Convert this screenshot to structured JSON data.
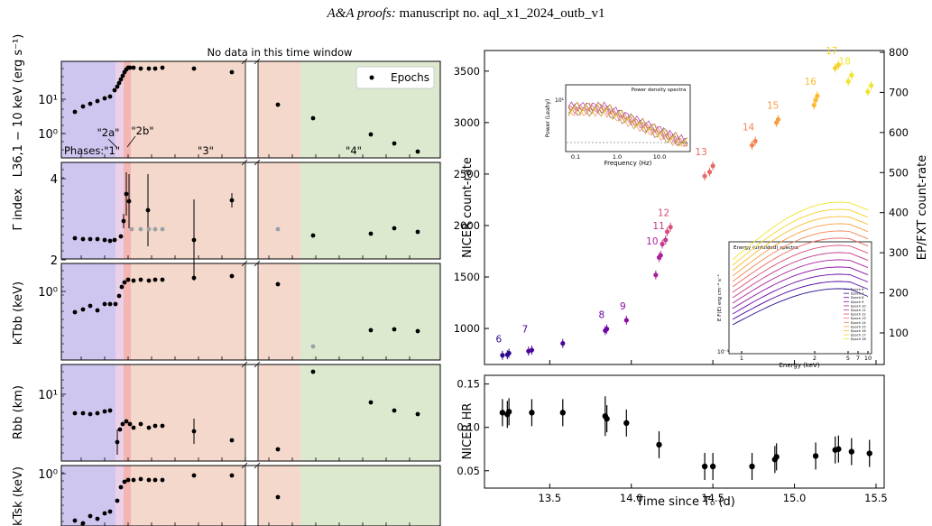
{
  "header": {
    "journal": "A&A proofs:",
    "manuscript": "manuscript no. aql_x1_2024_outb_v1"
  },
  "colors": {
    "phase1": "#cfc6f0",
    "phase2a": "#ead0e8",
    "phase2b": "#f4b6b2",
    "phase3": "#f4d8cb",
    "phase4": "#dde9cf",
    "points": "#000000",
    "upper_limit": "#9aa0a6"
  },
  "left_figure": {
    "gap_note": "No data in this time window",
    "legend": "Epochs",
    "phase_labels": {
      "p1": "\"1\"",
      "p2a": "\"2a\"",
      "p2b": "\"2b\"",
      "p3": "\"3\"",
      "p4": "\"4\"",
      "prefix": "Phases:"
    },
    "panels": [
      {
        "ylabel": "L36,1 − 10 keV (erg s⁻¹)",
        "ticks": [
          "10¹",
          "10⁰"
        ]
      },
      {
        "ylabel": "Γ index",
        "ticks": [
          "4",
          "2"
        ]
      },
      {
        "ylabel": "kTbb (keV)",
        "ticks": [
          "10⁰"
        ]
      },
      {
        "ylabel": "Rbb (km)",
        "ticks": [
          "10¹"
        ]
      },
      {
        "ylabel": "kTsk (keV)",
        "ticks": [
          "10⁰"
        ]
      }
    ]
  },
  "chart_data": [
    {
      "type": "scatter",
      "title": "",
      "xlabel": "",
      "ylabel": "NICER count-rate",
      "ylabel_right": "EP/FXT count-rate",
      "ylim": [
        650,
        3700
      ],
      "yticks": [
        "3500",
        "3000",
        "2500",
        "2000",
        "1500",
        "1000"
      ],
      "yticks_right": [
        "800",
        "700",
        "600",
        "500",
        "400",
        "300",
        "200",
        "100"
      ],
      "xlim": [
        13.1,
        15.55
      ],
      "series": [
        {
          "name": "6",
          "x": [
            13.21,
            13.24,
            13.25
          ],
          "values": [
            740,
            745,
            760
          ],
          "color": "#2b0a8c"
        },
        {
          "name": "7",
          "x": [
            13.37,
            13.39,
            13.58
          ],
          "values": [
            780,
            790,
            855
          ],
          "color": "#4b059c"
        },
        {
          "name": "8",
          "x": [
            13.84,
            13.85
          ],
          "values": [
            980,
            995
          ],
          "color": "#6a06a4"
        },
        {
          "name": "9",
          "x": [
            13.97
          ],
          "values": [
            1080
          ],
          "color": "#8a0ba3"
        },
        {
          "name": "10",
          "x": [
            14.15,
            14.17,
            14.18
          ],
          "values": [
            1520,
            1690,
            1710
          ],
          "color": "#a8239c"
        },
        {
          "name": "11",
          "x": [
            14.19,
            14.21
          ],
          "values": [
            1820,
            1860
          ],
          "color": "#c23a8c"
        },
        {
          "name": "12",
          "x": [
            14.22,
            14.24
          ],
          "values": [
            1940,
            1985
          ],
          "color": "#d6517a"
        },
        {
          "name": "13",
          "x": [
            14.45,
            14.48,
            14.5
          ],
          "values": [
            2480,
            2520,
            2580
          ],
          "color": "#e86a66"
        },
        {
          "name": "14",
          "x": [
            14.74,
            14.76
          ],
          "values": [
            2780,
            2820
          ],
          "color": "#f38452"
        },
        {
          "name": "15",
          "x": [
            14.89,
            14.9
          ],
          "values": [
            3000,
            3030
          ],
          "color": "#fa9e3f"
        },
        {
          "name": "16",
          "x": [
            15.12,
            15.13,
            15.14
          ],
          "values": [
            3170,
            3220,
            3260
          ],
          "color": "#fcba2e"
        },
        {
          "name": "17",
          "x": [
            15.25,
            15.27
          ],
          "values": [
            3530,
            3560
          ],
          "color": "#f6d12a"
        },
        {
          "name": "18",
          "x": [
            15.33,
            15.35,
            15.45,
            15.47
          ],
          "values": [
            3400,
            3460,
            3300,
            3360
          ],
          "color": "#f0e52c"
        }
      ]
    },
    {
      "type": "scatter",
      "title": "",
      "xlabel": "Time since T₀ (d)",
      "ylabel": "NICER HR",
      "ylim": [
        0.03,
        0.16
      ],
      "xlim": [
        13.1,
        15.55
      ],
      "xticks": [
        "13.5",
        "14.0",
        "14.5",
        "15.0",
        "15.5"
      ],
      "yticks": [
        "0.15",
        "0.10",
        "0.05"
      ],
      "series": [
        {
          "name": "",
          "x": [
            13.21,
            13.24,
            13.25,
            13.39,
            13.58,
            13.84,
            13.85,
            13.97,
            14.17,
            14.45,
            14.5,
            14.74,
            14.88,
            14.89,
            15.13,
            15.25,
            15.27,
            15.35,
            15.46
          ],
          "values": [
            0.117,
            0.115,
            0.118,
            0.117,
            0.117,
            0.113,
            0.11,
            0.105,
            0.08,
            0.055,
            0.055,
            0.055,
            0.063,
            0.066,
            0.067,
            0.074,
            0.075,
            0.072,
            0.07
          ]
        }
      ]
    }
  ],
  "insets": {
    "pds": {
      "title": "Power density spectra",
      "xlabel": "Frequency (Hz)",
      "ylabel": "Power (Leahy)",
      "xticks": [
        "0.1",
        "1.0",
        "10.0"
      ],
      "yticks": [
        "10¹"
      ]
    },
    "energy": {
      "title": "Energy (unfolded) spectra",
      "xlabel": "Energy (keV)",
      "ylabel": "E F(E) erg cm⁻² s⁻¹",
      "xticks": [
        "1",
        "2",
        "5",
        "7",
        "10"
      ],
      "yticks": [
        "10⁻¹"
      ],
      "legend": [
        "Epoch 6",
        "Epoch 7",
        "Epoch 8",
        "Epoch 9",
        "Epoch 10",
        "Epoch 11",
        "Epoch 12",
        "Epoch 13",
        "Epoch 14",
        "Epoch 15",
        "Epoch 16",
        "Epoch 17",
        "Epoch 18"
      ]
    }
  }
}
